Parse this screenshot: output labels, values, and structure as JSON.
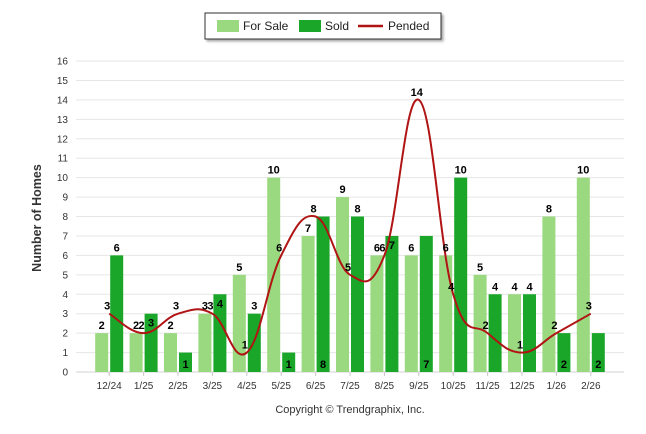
{
  "chart_data": {
    "type": "bar",
    "ylabel": "Number of Homes",
    "xlabel": "",
    "ylim": [
      0,
      16
    ],
    "yticks": [
      0,
      1,
      2,
      3,
      4,
      5,
      6,
      7,
      8,
      9,
      10,
      11,
      12,
      13,
      14,
      15,
      16
    ],
    "grid": true,
    "legend_position": "top-center",
    "categories": [
      "12/24",
      "1/25",
      "2/25",
      "3/25",
      "4/25",
      "5/25",
      "6/25",
      "7/25",
      "8/25",
      "9/25",
      "10/25",
      "11/25",
      "12/25",
      "1/26",
      "2/26"
    ],
    "series": [
      {
        "name": "For Sale",
        "kind": "bar",
        "color": "#9ad97f",
        "values": [
          2,
          2,
          2,
          3,
          5,
          10,
          7,
          9,
          6,
          6,
          6,
          5,
          4,
          8,
          10
        ]
      },
      {
        "name": "Sold",
        "kind": "bar",
        "color": "#19a629",
        "values": [
          6,
          3,
          1,
          4,
          3,
          1,
          8,
          8,
          7,
          7,
          10,
          4,
          4,
          2,
          2
        ]
      },
      {
        "name": "Pended",
        "kind": "line",
        "color": "#b01414",
        "values": [
          3,
          2,
          3,
          3,
          1,
          6,
          8,
          5,
          6,
          14,
          4,
          2,
          1,
          2,
          3
        ]
      }
    ]
  },
  "footer": {
    "copyright": "Copyright © Trendgraphix, Inc."
  }
}
